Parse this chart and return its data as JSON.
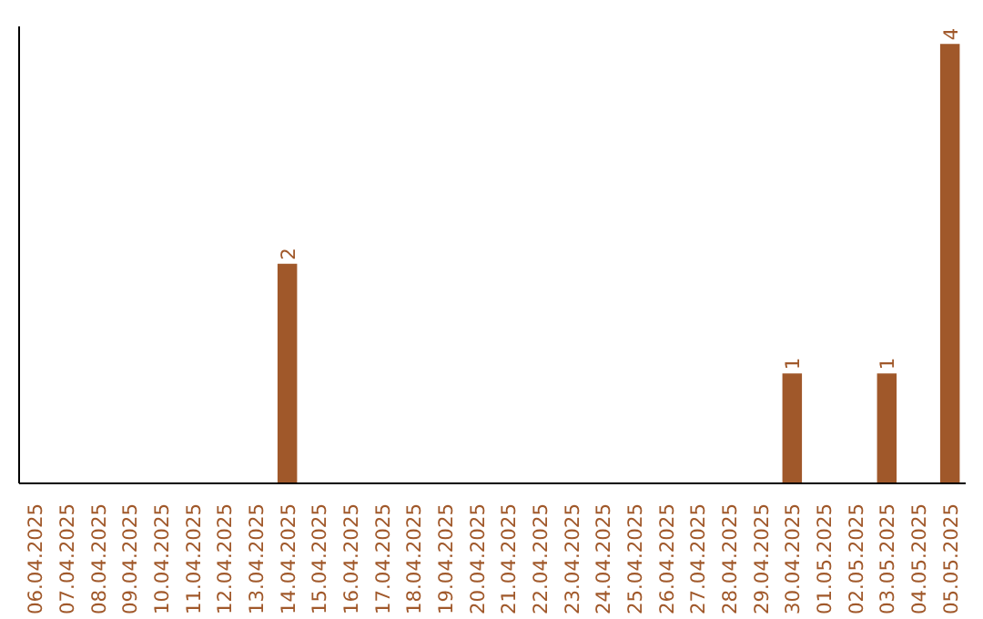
{
  "chart_data": {
    "type": "bar",
    "categories": [
      "06.04.2025",
      "07.04.2025",
      "08.04.2025",
      "09.04.2025",
      "10.04.2025",
      "11.04.2025",
      "12.04.2025",
      "13.04.2025",
      "14.04.2025",
      "15.04.2025",
      "16.04.2025",
      "17.04.2025",
      "18.04.2025",
      "19.04.2025",
      "20.04.2025",
      "21.04.2025",
      "22.04.2025",
      "23.04.2025",
      "24.04.2025",
      "25.04.2025",
      "26.04.2025",
      "27.04.2025",
      "28.04.2025",
      "29.04.2025",
      "30.04.2025",
      "01.05.2025",
      "02.05.2025",
      "03.05.2025",
      "04.05.2025",
      "05.05.2025"
    ],
    "values": [
      0,
      0,
      0,
      0,
      0,
      0,
      0,
      0,
      2,
      0,
      0,
      0,
      0,
      0,
      0,
      0,
      0,
      0,
      0,
      0,
      0,
      0,
      0,
      0,
      1,
      0,
      0,
      1,
      0,
      4
    ],
    "value_labels": [
      null,
      null,
      null,
      null,
      null,
      null,
      null,
      null,
      "2",
      null,
      null,
      null,
      null,
      null,
      null,
      null,
      null,
      null,
      null,
      null,
      null,
      null,
      null,
      null,
      "1",
      null,
      null,
      "1",
      null,
      "4"
    ],
    "color": "#a0582a",
    "grid": false,
    "tick_labels": "x"
  }
}
